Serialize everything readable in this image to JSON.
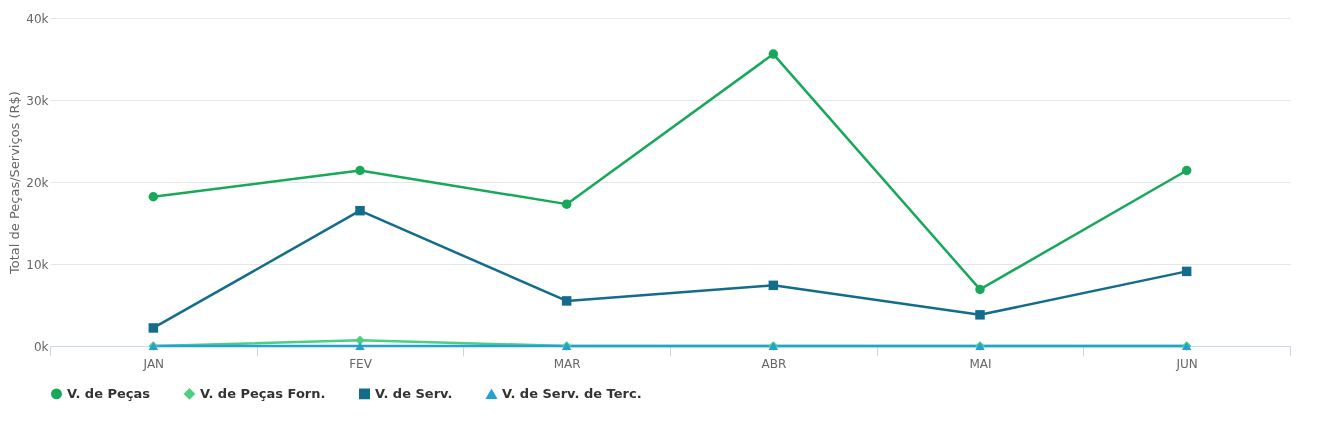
{
  "chart_data": {
    "type": "line",
    "ylabel": "Total de Peças/Serviços (R$)",
    "categories": [
      "JAN",
      "FEV",
      "MAR",
      "ABR",
      "MAI",
      "JUN"
    ],
    "series": [
      {
        "name": "V. de Peças",
        "color": "#17a85a",
        "marker": "circle",
        "values": [
          18200,
          21400,
          17300,
          35600,
          6900,
          21400
        ]
      },
      {
        "name": "V. de Peças Forn.",
        "color": "#4dcf80",
        "marker": "diamond",
        "values": [
          0,
          700,
          0,
          0,
          0,
          0
        ]
      },
      {
        "name": "V. de Serv.",
        "color": "#146c8c",
        "marker": "square",
        "values": [
          2200,
          16500,
          5500,
          7400,
          3800,
          9100
        ]
      },
      {
        "name": "V. de Serv. de Terc.",
        "color": "#23a2cf",
        "marker": "triangle",
        "values": [
          0,
          0,
          0,
          0,
          0,
          0
        ]
      }
    ],
    "ylim": [
      0,
      40000
    ],
    "yticks": [
      {
        "value": 0,
        "label": "0k"
      },
      {
        "value": 10000,
        "label": "10k"
      },
      {
        "value": 20000,
        "label": "20k"
      },
      {
        "value": 30000,
        "label": "30k"
      },
      {
        "value": 40000,
        "label": "40k"
      }
    ],
    "grid": "y",
    "legend": "bottom",
    "line_style": "solid"
  }
}
